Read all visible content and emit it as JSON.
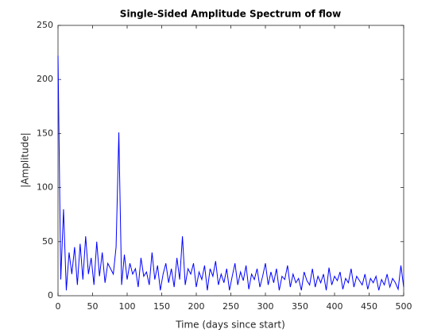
{
  "chart_data": {
    "type": "line",
    "title": "Single-Sided Amplitude Spectrum of flow",
    "xlabel": "Time (days since start)",
    "ylabel": "|Amplitude|",
    "xlim": [
      0,
      500
    ],
    "ylim": [
      0,
      250
    ],
    "xticks": [
      0,
      50,
      100,
      150,
      200,
      250,
      300,
      350,
      400,
      450,
      500
    ],
    "yticks": [
      0,
      50,
      100,
      150,
      200,
      250
    ],
    "x": [
      0,
      4,
      8,
      12,
      16,
      20,
      24,
      28,
      32,
      36,
      40,
      44,
      48,
      52,
      56,
      60,
      64,
      68,
      72,
      76,
      80,
      84,
      88,
      92,
      96,
      100,
      104,
      108,
      112,
      116,
      120,
      124,
      128,
      132,
      136,
      140,
      144,
      148,
      152,
      156,
      160,
      164,
      168,
      172,
      176,
      180,
      184,
      188,
      192,
      196,
      200,
      204,
      208,
      212,
      216,
      220,
      224,
      228,
      232,
      236,
      240,
      244,
      248,
      252,
      256,
      260,
      264,
      268,
      272,
      276,
      280,
      284,
      288,
      292,
      296,
      300,
      304,
      308,
      312,
      316,
      320,
      324,
      328,
      332,
      336,
      340,
      344,
      348,
      352,
      356,
      360,
      364,
      368,
      372,
      376,
      380,
      384,
      388,
      392,
      396,
      400,
      404,
      408,
      412,
      416,
      420,
      424,
      428,
      432,
      436,
      440,
      444,
      448,
      452,
      456,
      460,
      464,
      468,
      472,
      476,
      480,
      484,
      488,
      492,
      496,
      500
    ],
    "series": [
      {
        "name": "flow",
        "color": "#0000ff",
        "values": [
          222,
          15,
          80,
          5,
          40,
          20,
          45,
          10,
          48,
          15,
          55,
          20,
          35,
          10,
          50,
          18,
          40,
          12,
          30,
          25,
          20,
          45,
          151,
          10,
          38,
          15,
          30,
          20,
          25,
          8,
          35,
          18,
          22,
          10,
          40,
          15,
          28,
          5,
          20,
          30,
          12,
          25,
          8,
          35,
          15,
          55,
          10,
          25,
          20,
          30,
          8,
          22,
          15,
          28,
          5,
          25,
          18,
          32,
          10,
          20,
          12,
          25,
          5,
          18,
          30,
          10,
          22,
          14,
          28,
          6,
          20,
          15,
          25,
          8,
          18,
          30,
          10,
          22,
          12,
          25,
          5,
          18,
          15,
          28,
          8,
          20,
          12,
          16,
          5,
          22,
          14,
          10,
          25,
          8,
          18,
          12,
          20,
          5,
          26,
          10,
          18,
          14,
          22,
          6,
          16,
          12,
          25,
          8,
          18,
          14,
          10,
          20,
          6,
          16,
          12,
          18,
          5,
          15,
          10,
          20,
          8,
          16,
          12,
          6,
          28,
          8
        ]
      }
    ]
  }
}
